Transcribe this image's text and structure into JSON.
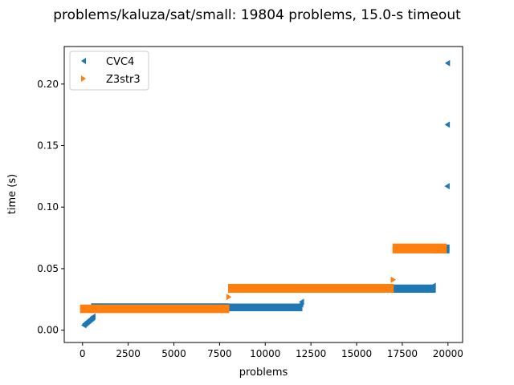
{
  "chart_data": {
    "type": "scatter",
    "title": "problems/kaluza/sat/small: 19804 problems, 15.0-s timeout",
    "xlabel": "problems",
    "ylabel": "time (s)",
    "xlim": [
      -1000,
      20800
    ],
    "ylim": [
      -0.01,
      0.2305
    ],
    "xticks": [
      0,
      2500,
      5000,
      7500,
      10000,
      12500,
      15000,
      17500,
      20000
    ],
    "xtick_labels": [
      "0",
      "2500",
      "5000",
      "7500",
      "10000",
      "12500",
      "15000",
      "17500",
      "20000"
    ],
    "yticks": [
      0.0,
      0.05,
      0.1,
      0.15,
      0.2
    ],
    "ytick_labels": [
      "0.00",
      "0.05",
      "0.10",
      "0.15",
      "0.20"
    ],
    "grid": false,
    "legend_position": "top-left",
    "series": [
      {
        "name": "CVC4",
        "marker": "triangle-left",
        "color": "#1f77b4",
        "points": [
          [
            80,
            0.004
          ],
          [
            120,
            0.005
          ],
          [
            160,
            0.0055
          ],
          [
            200,
            0.006
          ],
          [
            240,
            0.0065
          ],
          [
            280,
            0.007
          ],
          [
            320,
            0.0075
          ],
          [
            360,
            0.008
          ],
          [
            400,
            0.0085
          ],
          [
            440,
            0.009
          ],
          [
            480,
            0.0095
          ],
          [
            520,
            0.01
          ],
          [
            550,
            0.0105
          ],
          [
            580,
            0.011
          ],
          [
            600,
            0.0175
          ],
          [
            1000,
            0.0178
          ],
          [
            1500,
            0.018
          ],
          [
            2000,
            0.0182
          ],
          [
            2500,
            0.0183
          ],
          [
            3000,
            0.0184
          ],
          [
            3500,
            0.0185
          ],
          [
            4000,
            0.0186
          ],
          [
            4500,
            0.0186
          ],
          [
            5000,
            0.0187
          ],
          [
            5500,
            0.0187
          ],
          [
            6000,
            0.0188
          ],
          [
            6500,
            0.0188
          ],
          [
            7000,
            0.0189
          ],
          [
            7500,
            0.019
          ],
          [
            7900,
            0.0192
          ],
          [
            8000,
            0.018
          ],
          [
            8500,
            0.0182
          ],
          [
            9000,
            0.0183
          ],
          [
            9500,
            0.0184
          ],
          [
            10000,
            0.0185
          ],
          [
            10500,
            0.0186
          ],
          [
            11000,
            0.0187
          ],
          [
            11500,
            0.0188
          ],
          [
            11900,
            0.019
          ],
          [
            11950,
            0.021
          ],
          [
            11990,
            0.023
          ],
          [
            12000,
            0.033
          ],
          [
            12500,
            0.0332
          ],
          [
            13000,
            0.0334
          ],
          [
            13500,
            0.0335
          ],
          [
            14000,
            0.0336
          ],
          [
            14500,
            0.0337
          ],
          [
            15000,
            0.0338
          ],
          [
            15500,
            0.0338
          ],
          [
            16000,
            0.0339
          ],
          [
            16500,
            0.034
          ],
          [
            17000,
            0.034
          ],
          [
            17500,
            0.0341
          ],
          [
            18000,
            0.0342
          ],
          [
            18500,
            0.0343
          ],
          [
            19000,
            0.0345
          ],
          [
            19200,
            0.036
          ],
          [
            19250,
            0.065
          ],
          [
            19400,
            0.0652
          ],
          [
            19600,
            0.0655
          ],
          [
            19800,
            0.066
          ],
          [
            19950,
            0.067
          ],
          [
            19960,
            0.117
          ],
          [
            19970,
            0.167
          ],
          [
            19980,
            0.217
          ]
        ]
      },
      {
        "name": "Z3str3",
        "marker": "triangle-right",
        "color": "#ff7f0e",
        "points": [
          [
            0,
            0.0165
          ],
          [
            400,
            0.0168
          ],
          [
            800,
            0.017
          ],
          [
            1200,
            0.0171
          ],
          [
            1600,
            0.0172
          ],
          [
            2000,
            0.0173
          ],
          [
            2500,
            0.0174
          ],
          [
            3000,
            0.0175
          ],
          [
            3500,
            0.0176
          ],
          [
            4000,
            0.0176
          ],
          [
            4500,
            0.0177
          ],
          [
            5000,
            0.0177
          ],
          [
            5500,
            0.0178
          ],
          [
            6000,
            0.0178
          ],
          [
            6500,
            0.0179
          ],
          [
            7000,
            0.0179
          ],
          [
            7500,
            0.018
          ],
          [
            7900,
            0.0182
          ],
          [
            8000,
            0.027
          ],
          [
            8100,
            0.033
          ],
          [
            8500,
            0.0331
          ],
          [
            9000,
            0.0332
          ],
          [
            9500,
            0.0333
          ],
          [
            10000,
            0.0334
          ],
          [
            10500,
            0.0335
          ],
          [
            11000,
            0.0336
          ],
          [
            11500,
            0.0337
          ],
          [
            12000,
            0.0338
          ],
          [
            12500,
            0.0339
          ],
          [
            13000,
            0.034
          ],
          [
            13500,
            0.0341
          ],
          [
            14000,
            0.0342
          ],
          [
            14500,
            0.0343
          ],
          [
            15000,
            0.0344
          ],
          [
            15500,
            0.0345
          ],
          [
            16000,
            0.0346
          ],
          [
            16500,
            0.0348
          ],
          [
            16900,
            0.035
          ],
          [
            17000,
            0.041
          ],
          [
            17100,
            0.065
          ],
          [
            17400,
            0.0655
          ],
          [
            17800,
            0.066
          ],
          [
            18200,
            0.0665
          ],
          [
            18600,
            0.067
          ],
          [
            19000,
            0.0672
          ],
          [
            19400,
            0.0675
          ],
          [
            19800,
            0.0678
          ]
        ]
      }
    ]
  }
}
